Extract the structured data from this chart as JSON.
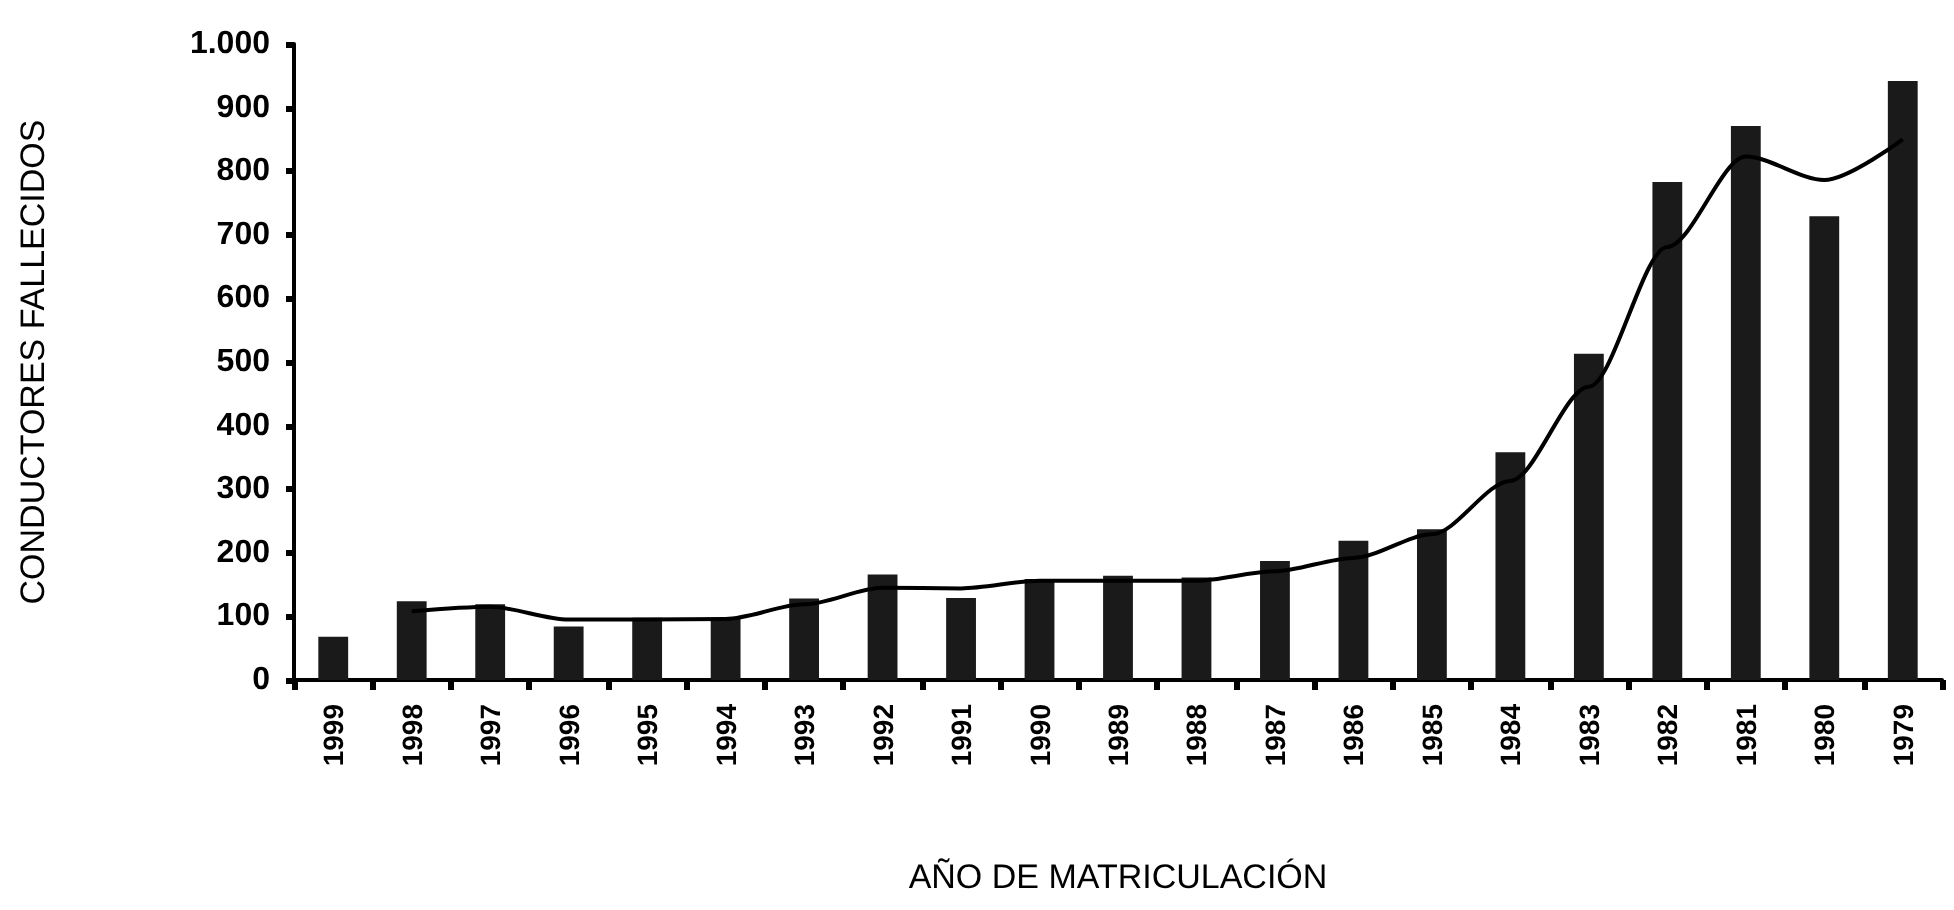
{
  "chart_data": {
    "type": "bar",
    "xlabel": "AÑO DE MATRICULACIÓN",
    "ylabel": "CONDUCTORES FALLECIDOS",
    "categories": [
      "1999",
      "1998",
      "1997",
      "1996",
      "1995",
      "1994",
      "1993",
      "1992",
      "1991",
      "1990",
      "1989",
      "1988",
      "1987",
      "1986",
      "1985",
      "1984",
      "1983",
      "1982",
      "1981",
      "1980",
      "1979"
    ],
    "series": [
      {
        "color": "#1a1a1a",
        "values": [
          68,
          124,
          119,
          84,
          98,
          98,
          128,
          166,
          129,
          159,
          164,
          161,
          187,
          219,
          237,
          358,
          513,
          783,
          871,
          729,
          942
        ]
      },
      {
        "type": "line",
        "color": "#000000",
        "marker": "none",
        "line_style": "solid",
        "values": [
          null,
          108,
          115,
          95,
          95,
          96,
          119,
          145,
          144,
          156,
          156,
          156,
          171,
          192,
          229,
          313,
          461,
          681,
          823,
          786,
          850
        ]
      }
    ],
    "ylim": [
      0,
      1000
    ],
    "yticks": [
      0,
      100,
      200,
      300,
      400,
      500,
      600,
      700,
      800,
      900,
      {
        "value": 1000,
        "label": "1.000"
      }
    ],
    "grid": false
  }
}
